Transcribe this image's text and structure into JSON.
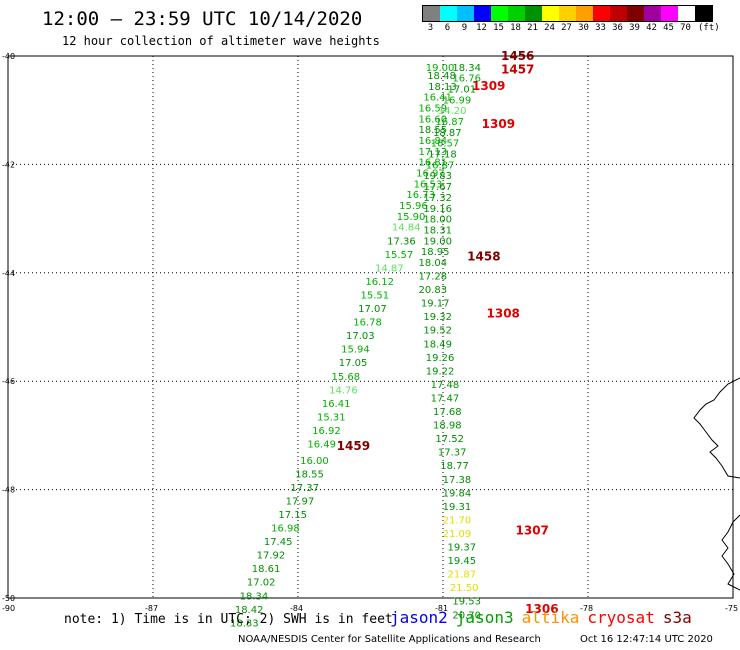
{
  "header": {
    "title": "12:00 — 23:59 UTC 10/14/2020",
    "subtitle": "12 hour collection of altimeter wave heights"
  },
  "legend": {
    "colors": [
      "#808080",
      "#00ffff",
      "#00c0ff",
      "#0000ff",
      "#00ff00",
      "#00d000",
      "#009000",
      "#ffff00",
      "#ffd000",
      "#ffa000",
      "#ff0000",
      "#c00000",
      "#800000",
      "#a000a0",
      "#ff00ff",
      "#ffffff",
      "#000000"
    ],
    "labels": [
      "3",
      "6",
      "9",
      "12",
      "15",
      "18",
      "21",
      "24",
      "27",
      "30",
      "33",
      "36",
      "39",
      "42",
      "45",
      "70",
      "(ft)"
    ]
  },
  "axes": {
    "lat_labels": [
      "-40",
      "-42",
      "-44",
      "-46",
      "-48",
      "-50"
    ],
    "lon_labels": [
      "-90",
      "-87",
      "-84",
      "-81",
      "-78",
      "-75"
    ]
  },
  "chart_data": {
    "type": "scatter",
    "x_label": "longitude",
    "y_label": "latitude",
    "xlim": [
      -90,
      -75
    ],
    "ylim": [
      -50,
      -40
    ],
    "tracks": [
      {
        "name": "1459",
        "color": "#800000",
        "label_lon": -83.2,
        "label_lat": -47.2,
        "points": [
          [
            -81.15,
            -40.2,
            "19.00",
            "#00b000"
          ],
          [
            -81.12,
            -40.35,
            "18.48",
            "#009000"
          ],
          [
            -81.1,
            -40.55,
            "18.13",
            "#009000"
          ],
          [
            -81.2,
            -40.75,
            "16.41",
            "#00b000"
          ],
          [
            -81.3,
            -40.95,
            "16.59",
            "#00b000"
          ],
          [
            -81.3,
            -41.15,
            "16.60",
            "#00b000"
          ],
          [
            -81.3,
            -41.35,
            "18.55",
            "#009000"
          ],
          [
            -81.3,
            -41.55,
            "16.84",
            "#00b000"
          ],
          [
            -81.3,
            -41.75,
            "17.13",
            "#00b000"
          ],
          [
            -81.3,
            -41.95,
            "16.81",
            "#00b000"
          ],
          [
            -81.35,
            -42.15,
            "16.97",
            "#00b000"
          ],
          [
            -81.4,
            -42.35,
            "16.53",
            "#00b000"
          ],
          [
            -81.55,
            -42.55,
            "16.73",
            "#00b000"
          ],
          [
            -81.7,
            -42.75,
            "15.96",
            "#00b000"
          ],
          [
            -81.75,
            -42.95,
            "15.90",
            "#00b000"
          ],
          [
            -81.85,
            -43.15,
            "14.84",
            "#60e060"
          ],
          [
            -81.95,
            -43.4,
            "17.36",
            "#009000"
          ],
          [
            -82.0,
            -43.65,
            "15.57",
            "#00b000"
          ],
          [
            -82.2,
            -43.9,
            "14.87",
            "#60e060"
          ],
          [
            -82.4,
            -44.15,
            "16.12",
            "#00b000"
          ],
          [
            -82.5,
            -44.4,
            "15.51",
            "#00b000"
          ],
          [
            -82.55,
            -44.65,
            "17.07",
            "#009000"
          ],
          [
            -82.65,
            -44.9,
            "16.78",
            "#00b000"
          ],
          [
            -82.8,
            -45.15,
            "17.03",
            "#009000"
          ],
          [
            -82.9,
            -45.4,
            "15.94",
            "#00b000"
          ],
          [
            -82.95,
            -45.65,
            "17.05",
            "#009000"
          ],
          [
            -83.1,
            -45.9,
            "15.68",
            "#00b000"
          ],
          [
            -83.15,
            -46.15,
            "14.76",
            "#60e060"
          ],
          [
            -83.3,
            -46.4,
            "16.41",
            "#00b000"
          ],
          [
            -83.4,
            -46.65,
            "15.31",
            "#00b000"
          ],
          [
            -83.5,
            -46.9,
            "16.92",
            "#00b000"
          ],
          [
            -83.6,
            -47.15,
            "16.49",
            "#00b000"
          ],
          [
            -83.75,
            -47.45,
            "16.00",
            "#00b000"
          ],
          [
            -83.85,
            -47.7,
            "18.55",
            "#009000"
          ],
          [
            -83.95,
            -47.95,
            "17.37",
            "#009000"
          ],
          [
            -84.05,
            -48.2,
            "17.97",
            "#009000"
          ],
          [
            -84.2,
            -48.45,
            "17.15",
            "#009000"
          ],
          [
            -84.35,
            -48.7,
            "16.98",
            "#00b000"
          ],
          [
            -84.5,
            -48.95,
            "17.45",
            "#009000"
          ],
          [
            -84.65,
            -49.2,
            "17.92",
            "#009000"
          ],
          [
            -84.75,
            -49.45,
            "18.61",
            "#009000"
          ],
          [
            -84.85,
            -49.7,
            "17.02",
            "#009000"
          ],
          [
            -85.0,
            -49.95,
            "18.34",
            "#009000"
          ],
          [
            -85.1,
            -50.2,
            "18.42",
            "#009000"
          ],
          [
            -85.2,
            -50.45,
            "18.33",
            "#009000"
          ]
        ]
      },
      {
        "name": "1458",
        "color": "#800000",
        "label_lon": -80.5,
        "label_lat": -43.7,
        "points": [
          [
            -80.6,
            -40.2,
            "18.34",
            "#009000"
          ],
          [
            -80.6,
            -40.4,
            "16.76",
            "#00b000"
          ],
          [
            -80.7,
            -40.6,
            "17.01",
            "#009000"
          ],
          [
            -80.8,
            -40.8,
            "16.99",
            "#00b000"
          ],
          [
            -80.9,
            -41.0,
            "14.20",
            "#60e060"
          ],
          [
            -80.95,
            -41.2,
            "16.87",
            "#00b000"
          ],
          [
            -81.0,
            -41.4,
            "18.87",
            "#009000"
          ],
          [
            -81.05,
            -41.6,
            "16.57",
            "#00b000"
          ],
          [
            -81.1,
            -41.8,
            "17.18",
            "#009000"
          ],
          [
            -81.15,
            -42.0,
            "16.87",
            "#00b000"
          ],
          [
            -81.2,
            -42.2,
            "19.83",
            "#009000"
          ],
          [
            -81.2,
            -42.4,
            "17.67",
            "#009000"
          ],
          [
            -81.2,
            -42.6,
            "17.32",
            "#009000"
          ],
          [
            -81.2,
            -42.8,
            "19.16",
            "#009000"
          ],
          [
            -81.2,
            -43.0,
            "18.00",
            "#009000"
          ],
          [
            -81.2,
            -43.2,
            "18.31",
            "#009000"
          ],
          [
            -81.2,
            -43.4,
            "19.00",
            "#009000"
          ],
          [
            -81.25,
            -43.6,
            "18.95",
            "#009000"
          ],
          [
            -81.3,
            -43.8,
            "18.04",
            "#009000"
          ],
          [
            -81.3,
            -44.05,
            "17.28",
            "#009000"
          ],
          [
            -81.3,
            -44.3,
            "20.83",
            "#009000"
          ],
          [
            -81.25,
            -44.55,
            "19.17",
            "#009000"
          ],
          [
            -81.2,
            -44.8,
            "19.32",
            "#009000"
          ],
          [
            -81.2,
            -45.05,
            "19.52",
            "#009000"
          ],
          [
            -81.2,
            -45.3,
            "18.49",
            "#009000"
          ],
          [
            -81.15,
            -45.55,
            "19.26",
            "#009000"
          ],
          [
            -81.15,
            -45.8,
            "19.22",
            "#009000"
          ],
          [
            -81.05,
            -46.05,
            "17.48",
            "#009000"
          ],
          [
            -81.05,
            -46.3,
            "17.47",
            "#009000"
          ],
          [
            -81.0,
            -46.55,
            "17.68",
            "#009000"
          ],
          [
            -81.0,
            -46.8,
            "18.98",
            "#009000"
          ],
          [
            -80.95,
            -47.05,
            "17.52",
            "#009000"
          ],
          [
            -80.9,
            -47.3,
            "17.37",
            "#009000"
          ],
          [
            -80.85,
            -47.55,
            "18.77",
            "#009000"
          ],
          [
            -80.8,
            -47.8,
            "17.38",
            "#009000"
          ],
          [
            -80.8,
            -48.05,
            "19.84",
            "#009000"
          ],
          [
            -80.8,
            -48.3,
            "19.31",
            "#009000"
          ],
          [
            -80.8,
            -48.55,
            "21.70",
            "#e0e000"
          ],
          [
            -80.8,
            -48.8,
            "21.09",
            "#e0e000"
          ],
          [
            -80.7,
            -49.05,
            "19.37",
            "#009000"
          ],
          [
            -80.7,
            -49.3,
            "19.45",
            "#009000"
          ],
          [
            -80.7,
            -49.55,
            "21.87",
            "#e0e000"
          ],
          [
            -80.65,
            -49.8,
            "21.50",
            "#e0e000"
          ],
          [
            -80.6,
            -50.05,
            "19.53",
            "#009000"
          ],
          [
            -80.6,
            -50.3,
            "20.70",
            "#009000"
          ]
        ]
      }
    ],
    "pass_labels": [
      {
        "text": "1456",
        "lon": -79.8,
        "lat": -40.0,
        "color": "#800000"
      },
      {
        "text": "1457",
        "lon": -79.8,
        "lat": -40.25,
        "color": "#c00000"
      },
      {
        "text": "1309",
        "lon": -80.4,
        "lat": -40.55,
        "color": "#e00000"
      },
      {
        "text": "1309",
        "lon": -80.2,
        "lat": -41.25,
        "color": "#e00000"
      },
      {
        "text": "1308",
        "lon": -80.1,
        "lat": -44.75,
        "color": "#e00000"
      },
      {
        "text": "1307",
        "lon": -79.5,
        "lat": -48.75,
        "color": "#e00000"
      },
      {
        "text": "1306",
        "lon": -79.3,
        "lat": -50.2,
        "color": "#e00000"
      }
    ]
  },
  "footer": {
    "note": "note: 1) Time is in UTC; 2) SWH is in feet",
    "satellites": [
      {
        "name": "jason2",
        "color": "#0000ff"
      },
      {
        "name": "jason3",
        "color": "#00a000"
      },
      {
        "name": "altika",
        "color": "#ff9000"
      },
      {
        "name": "cryosat",
        "color": "#ff0000"
      },
      {
        "name": "s3a",
        "color": "#800000"
      }
    ],
    "credit": "NOAA/NESDIS Center for Satellite Applications and Research",
    "timestamp": "Oct 16 12:47:14 UTC 2020"
  }
}
